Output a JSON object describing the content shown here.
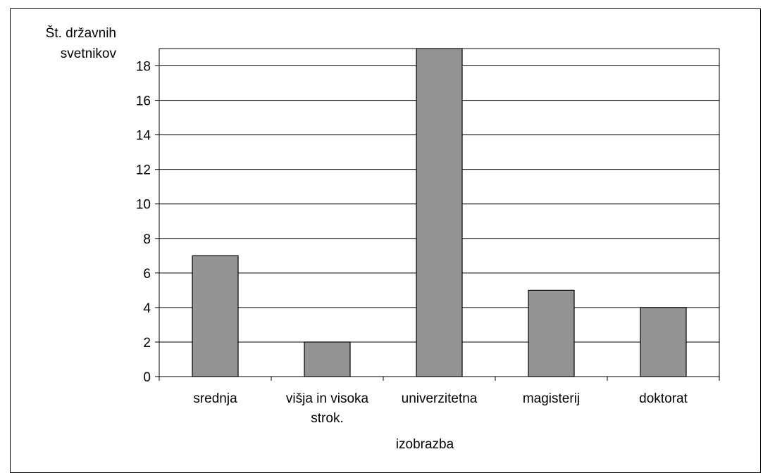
{
  "chart_data": {
    "type": "bar",
    "ylabel": [
      "Št. državnih",
      "svetnikov"
    ],
    "xlabel": "izobrazba",
    "categories": [
      [
        "srednja"
      ],
      [
        "višja in visoka",
        "strok."
      ],
      [
        "univerzitetna"
      ],
      [
        "magisterij"
      ],
      [
        "doktorat"
      ]
    ],
    "values": [
      7,
      2,
      19,
      5,
      4
    ],
    "ylim": [
      0,
      19
    ],
    "yticks": [
      "0",
      "2",
      "4",
      "6",
      "8",
      "10",
      "12",
      "14",
      "16",
      "18"
    ],
    "grid": true,
    "legend": "none",
    "colors": {
      "bar": "#949494",
      "grid": "#000000",
      "axis": "#000000"
    }
  }
}
